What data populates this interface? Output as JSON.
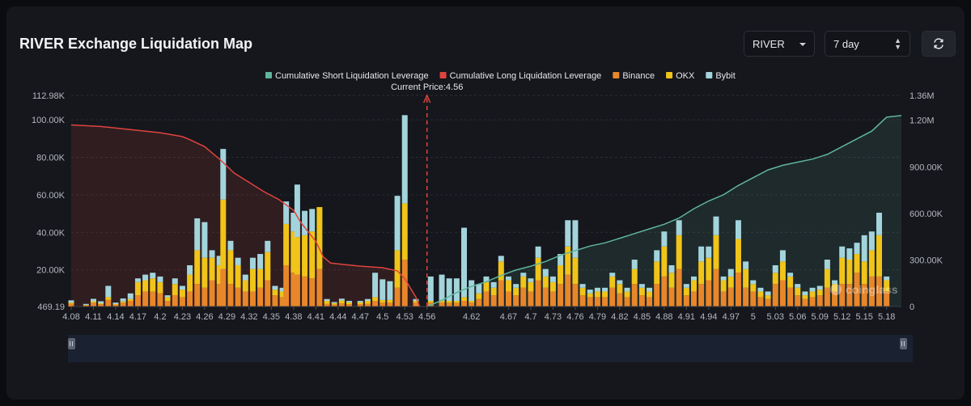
{
  "header": {
    "title": "RIVER Exchange Liquidation Map",
    "symbol_select": "RIVER",
    "range_select": "7 day"
  },
  "watermark": "coinglass",
  "colors": {
    "short_cum": "#5fb49c",
    "long_cum": "#e0433f",
    "binance": "#e8862a",
    "okx": "#f0c419",
    "bybit": "#a3d4dc",
    "current_price": "#e0433f"
  },
  "chart_data": {
    "type": "bar",
    "x_tick_labels": [
      "4.08",
      "4.11",
      "4.14",
      "4.17",
      "4.2",
      "4.23",
      "4.26",
      "4.29",
      "4.32",
      "4.35",
      "4.38",
      "4.41",
      "4.44",
      "4.47",
      "4.5",
      "4.53",
      "4.56",
      "4.62",
      "4.67",
      "4.7",
      "4.73",
      "4.76",
      "4.79",
      "4.82",
      "4.85",
      "4.88",
      "4.91",
      "4.94",
      "4.97",
      "5",
      "5.03",
      "5.06",
      "5.09",
      "5.12",
      "5.15",
      "5.18"
    ],
    "x_range": [
      4.08,
      5.2
    ],
    "y_left_ticks": [
      "469.19",
      "20.00K",
      "40.00K",
      "60.00K",
      "80.00K",
      "100.00K",
      "112.98K"
    ],
    "y_left_range": [
      469.19,
      112980
    ],
    "y_right_ticks": [
      "0",
      "300.00K",
      "600.00K",
      "900.00K",
      "1.20M",
      "1.36M"
    ],
    "y_right_range": [
      0,
      1360000
    ],
    "current_price": 4.56,
    "current_price_label": "Current Price:4.56",
    "legend": [
      {
        "name": "Cumulative Short Liquidation Leverage",
        "color": "#5fb49c"
      },
      {
        "name": "Cumulative Long Liquidation Leverage",
        "color": "#e0433f"
      },
      {
        "name": "Binance",
        "color": "#e8862a"
      },
      {
        "name": "OKX",
        "color": "#f0c419"
      },
      {
        "name": "Bybit",
        "color": "#a3d4dc"
      }
    ],
    "bars": [
      {
        "x": 4.08,
        "binance": 1500,
        "okx": 600,
        "bybit": 1200
      },
      {
        "x": 4.1,
        "binance": 600,
        "okx": 300,
        "bybit": 500
      },
      {
        "x": 4.11,
        "binance": 2000,
        "okx": 800,
        "bybit": 1300
      },
      {
        "x": 4.12,
        "binance": 1200,
        "okx": 500,
        "bybit": 1100
      },
      {
        "x": 4.13,
        "binance": 3500,
        "okx": 1500,
        "bybit": 6000
      },
      {
        "x": 4.14,
        "binance": 900,
        "okx": 400,
        "bybit": 800
      },
      {
        "x": 4.15,
        "binance": 2000,
        "okx": 700,
        "bybit": 1600
      },
      {
        "x": 4.16,
        "binance": 3000,
        "okx": 1000,
        "bybit": 3000
      },
      {
        "x": 4.17,
        "binance": 6000,
        "okx": 7000,
        "bybit": 2000
      },
      {
        "x": 4.18,
        "binance": 8000,
        "okx": 6000,
        "bybit": 3000
      },
      {
        "x": 4.19,
        "binance": 8000,
        "okx": 7000,
        "bybit": 3000
      },
      {
        "x": 4.2,
        "binance": 7000,
        "okx": 6000,
        "bybit": 3000
      },
      {
        "x": 4.21,
        "binance": 3000,
        "okx": 2000,
        "bybit": 1000
      },
      {
        "x": 4.22,
        "binance": 6000,
        "okx": 6000,
        "bybit": 3000
      },
      {
        "x": 4.23,
        "binance": 5000,
        "okx": 4000,
        "bybit": 2000
      },
      {
        "x": 4.24,
        "binance": 8000,
        "okx": 9000,
        "bybit": 5000
      },
      {
        "x": 4.25,
        "binance": 12000,
        "okx": 18000,
        "bybit": 17000
      },
      {
        "x": 4.26,
        "binance": 10000,
        "okx": 16000,
        "bybit": 19000
      },
      {
        "x": 4.27,
        "binance": 14000,
        "okx": 12000,
        "bybit": 4000
      },
      {
        "x": 4.28,
        "binance": 12000,
        "okx": 10000,
        "bybit": 5000
      },
      {
        "x": 4.285,
        "binance": 20000,
        "okx": 37000,
        "bybit": 27000
      },
      {
        "x": 4.295,
        "binance": 12000,
        "okx": 18000,
        "bybit": 5000
      },
      {
        "x": 4.305,
        "binance": 10000,
        "okx": 12000,
        "bybit": 4000
      },
      {
        "x": 4.315,
        "binance": 8000,
        "okx": 6000,
        "bybit": 3000
      },
      {
        "x": 4.325,
        "binance": 8000,
        "okx": 12000,
        "bybit": 6000
      },
      {
        "x": 4.335,
        "binance": 10000,
        "okx": 10000,
        "bybit": 8000
      },
      {
        "x": 4.345,
        "binance": 14000,
        "okx": 15000,
        "bybit": 6000
      },
      {
        "x": 4.355,
        "binance": 6000,
        "okx": 3000,
        "bybit": 2000
      },
      {
        "x": 4.365,
        "binance": 5000,
        "okx": 3000,
        "bybit": 2000
      },
      {
        "x": 4.37,
        "binance": 22000,
        "okx": 22000,
        "bybit": 12000
      },
      {
        "x": 4.38,
        "binance": 18000,
        "okx": 22000,
        "bybit": 10000
      },
      {
        "x": 4.385,
        "binance": 17000,
        "okx": 20000,
        "bybit": 28000
      },
      {
        "x": 4.395,
        "binance": 16000,
        "okx": 22000,
        "bybit": 13000
      },
      {
        "x": 4.405,
        "binance": 15000,
        "okx": 25000,
        "bybit": 12000
      },
      {
        "x": 4.415,
        "binance": 20000,
        "okx": 33000,
        "bybit": 0
      },
      {
        "x": 4.425,
        "binance": 1500,
        "okx": 1500,
        "bybit": 1000
      },
      {
        "x": 4.435,
        "binance": 1000,
        "okx": 800,
        "bybit": 600
      },
      {
        "x": 4.445,
        "binance": 1600,
        "okx": 1600,
        "bybit": 1000
      },
      {
        "x": 4.455,
        "binance": 1200,
        "okx": 1000,
        "bybit": 800
      },
      {
        "x": 4.47,
        "binance": 1200,
        "okx": 1000,
        "bybit": 800
      },
      {
        "x": 4.48,
        "binance": 1500,
        "okx": 1500,
        "bybit": 1000
      },
      {
        "x": 4.49,
        "binance": 3000,
        "okx": 2000,
        "bybit": 13000
      },
      {
        "x": 4.5,
        "binance": 2000,
        "okx": 1500,
        "bybit": 11000
      },
      {
        "x": 4.51,
        "binance": 2000,
        "okx": 1500,
        "bybit": 10000
      },
      {
        "x": 4.52,
        "binance": 10000,
        "okx": 20000,
        "bybit": 29000
      },
      {
        "x": 4.53,
        "binance": 25000,
        "okx": 30000,
        "bybit": 47000
      },
      {
        "x": 4.545,
        "binance": 2000,
        "okx": 1000,
        "bybit": 1000
      },
      {
        "x": 4.565,
        "binance": 2000,
        "okx": 1000,
        "bybit": 13000
      },
      {
        "x": 4.58,
        "binance": 2000,
        "okx": 1000,
        "bybit": 14000
      },
      {
        "x": 4.59,
        "binance": 2000,
        "okx": 1000,
        "bybit": 12000
      },
      {
        "x": 4.6,
        "binance": 2000,
        "okx": 1000,
        "bybit": 12000
      },
      {
        "x": 4.61,
        "binance": 3000,
        "okx": 2000,
        "bybit": 37000
      },
      {
        "x": 4.62,
        "binance": 2000,
        "okx": 1000,
        "bybit": 11000
      },
      {
        "x": 4.63,
        "binance": 4000,
        "okx": 3000,
        "bybit": 5000
      },
      {
        "x": 4.64,
        "binance": 8000,
        "okx": 5000,
        "bybit": 3000
      },
      {
        "x": 4.65,
        "binance": 6000,
        "okx": 4000,
        "bybit": 3000
      },
      {
        "x": 4.66,
        "binance": 14000,
        "okx": 10000,
        "bybit": 3000
      },
      {
        "x": 4.67,
        "binance": 8000,
        "okx": 6000,
        "bybit": 2000
      },
      {
        "x": 4.68,
        "binance": 6000,
        "okx": 4000,
        "bybit": 2000
      },
      {
        "x": 4.69,
        "binance": 10000,
        "okx": 6000,
        "bybit": 2000
      },
      {
        "x": 4.7,
        "binance": 8000,
        "okx": 5000,
        "bybit": 2000
      },
      {
        "x": 4.71,
        "binance": 14000,
        "okx": 12000,
        "bybit": 6000
      },
      {
        "x": 4.72,
        "binance": 10000,
        "okx": 6000,
        "bybit": 4000
      },
      {
        "x": 4.73,
        "binance": 8000,
        "okx": 5000,
        "bybit": 3000
      },
      {
        "x": 4.74,
        "binance": 12000,
        "okx": 10000,
        "bybit": 6000
      },
      {
        "x": 4.75,
        "binance": 17000,
        "okx": 15000,
        "bybit": 14000
      },
      {
        "x": 4.76,
        "binance": 12000,
        "okx": 14000,
        "bybit": 20000
      },
      {
        "x": 4.77,
        "binance": 6000,
        "okx": 4000,
        "bybit": 2000
      },
      {
        "x": 4.78,
        "binance": 5000,
        "okx": 2000,
        "bybit": 2000
      },
      {
        "x": 4.79,
        "binance": 5000,
        "okx": 3000,
        "bybit": 2000
      },
      {
        "x": 4.8,
        "binance": 5000,
        "okx": 3000,
        "bybit": 2000
      },
      {
        "x": 4.81,
        "binance": 10000,
        "okx": 6000,
        "bybit": 2000
      },
      {
        "x": 4.82,
        "binance": 7000,
        "okx": 5000,
        "bybit": 2000
      },
      {
        "x": 4.83,
        "binance": 5000,
        "okx": 3000,
        "bybit": 2000
      },
      {
        "x": 4.84,
        "binance": 12000,
        "okx": 8000,
        "bybit": 5000
      },
      {
        "x": 4.85,
        "binance": 6000,
        "okx": 4000,
        "bybit": 2000
      },
      {
        "x": 4.86,
        "binance": 5000,
        "okx": 3000,
        "bybit": 2000
      },
      {
        "x": 4.87,
        "binance": 12000,
        "okx": 12000,
        "bybit": 6000
      },
      {
        "x": 4.88,
        "binance": 16000,
        "okx": 16000,
        "bybit": 8000
      },
      {
        "x": 4.89,
        "binance": 10000,
        "okx": 8000,
        "bybit": 4000
      },
      {
        "x": 4.9,
        "binance": 20000,
        "okx": 18000,
        "bybit": 8000
      },
      {
        "x": 4.91,
        "binance": 6000,
        "okx": 4000,
        "bybit": 2000
      },
      {
        "x": 4.92,
        "binance": 8000,
        "okx": 6000,
        "bybit": 2000
      },
      {
        "x": 4.93,
        "binance": 12000,
        "okx": 12000,
        "bybit": 8000
      },
      {
        "x": 4.94,
        "binance": 14000,
        "okx": 12000,
        "bybit": 6000
      },
      {
        "x": 4.95,
        "binance": 20000,
        "okx": 18000,
        "bybit": 10000
      },
      {
        "x": 4.96,
        "binance": 8000,
        "okx": 6000,
        "bybit": 2000
      },
      {
        "x": 4.97,
        "binance": 10000,
        "okx": 6000,
        "bybit": 4000
      },
      {
        "x": 4.98,
        "binance": 18000,
        "okx": 18000,
        "bybit": 10000
      },
      {
        "x": 4.99,
        "binance": 10000,
        "okx": 10000,
        "bybit": 4000
      },
      {
        "x": 5.0,
        "binance": 8000,
        "okx": 4000,
        "bybit": 2000
      },
      {
        "x": 5.01,
        "binance": 5000,
        "okx": 3000,
        "bybit": 2000
      },
      {
        "x": 5.02,
        "binance": 4000,
        "okx": 2000,
        "bybit": 2000
      },
      {
        "x": 5.03,
        "binance": 12000,
        "okx": 6000,
        "bybit": 4000
      },
      {
        "x": 5.04,
        "binance": 14000,
        "okx": 10000,
        "bybit": 6000
      },
      {
        "x": 5.05,
        "binance": 10000,
        "okx": 6000,
        "bybit": 2000
      },
      {
        "x": 5.06,
        "binance": 6000,
        "okx": 4000,
        "bybit": 2000
      },
      {
        "x": 5.07,
        "binance": 4000,
        "okx": 2000,
        "bybit": 2000
      },
      {
        "x": 5.08,
        "binance": 5000,
        "okx": 3000,
        "bybit": 2000
      },
      {
        "x": 5.09,
        "binance": 6000,
        "okx": 3000,
        "bybit": 2000
      },
      {
        "x": 5.1,
        "binance": 10000,
        "okx": 10000,
        "bybit": 5000
      },
      {
        "x": 5.11,
        "binance": 8000,
        "okx": 4000,
        "bybit": 2000
      },
      {
        "x": 5.12,
        "binance": 12000,
        "okx": 14000,
        "bybit": 6000
      },
      {
        "x": 5.13,
        "binance": 12000,
        "okx": 13000,
        "bybit": 6000
      },
      {
        "x": 5.14,
        "binance": 18000,
        "okx": 10000,
        "bybit": 6000
      },
      {
        "x": 5.15,
        "binance": 12000,
        "okx": 12000,
        "bybit": 14000
      },
      {
        "x": 5.16,
        "binance": 16000,
        "okx": 14000,
        "bybit": 10000
      },
      {
        "x": 5.17,
        "binance": 16000,
        "okx": 22000,
        "bybit": 12000
      },
      {
        "x": 5.18,
        "binance": 8000,
        "okx": 6000,
        "bybit": 2000
      }
    ],
    "long_cum": [
      [
        4.08,
        1170000
      ],
      [
        4.12,
        1160000
      ],
      [
        4.16,
        1140000
      ],
      [
        4.2,
        1120000
      ],
      [
        4.23,
        1095000
      ],
      [
        4.24,
        1075000
      ],
      [
        4.26,
        1030000
      ],
      [
        4.28,
        950000
      ],
      [
        4.3,
        860000
      ],
      [
        4.32,
        800000
      ],
      [
        4.34,
        740000
      ],
      [
        4.36,
        690000
      ],
      [
        4.38,
        620000
      ],
      [
        4.39,
        540000
      ],
      [
        4.41,
        420000
      ],
      [
        4.42,
        320000
      ],
      [
        4.43,
        280000
      ],
      [
        4.45,
        270000
      ],
      [
        4.47,
        260000
      ],
      [
        4.5,
        250000
      ],
      [
        4.52,
        230000
      ],
      [
        4.53,
        180000
      ],
      [
        4.545,
        60000
      ],
      [
        4.55,
        0
      ]
    ],
    "short_cum": [
      [
        4.56,
        0
      ],
      [
        4.58,
        40000
      ],
      [
        4.6,
        90000
      ],
      [
        4.62,
        130000
      ],
      [
        4.64,
        160000
      ],
      [
        4.66,
        200000
      ],
      [
        4.68,
        235000
      ],
      [
        4.7,
        260000
      ],
      [
        4.72,
        290000
      ],
      [
        4.74,
        330000
      ],
      [
        4.76,
        360000
      ],
      [
        4.78,
        390000
      ],
      [
        4.8,
        410000
      ],
      [
        4.82,
        440000
      ],
      [
        4.84,
        470000
      ],
      [
        4.86,
        500000
      ],
      [
        4.88,
        530000
      ],
      [
        4.9,
        570000
      ],
      [
        4.92,
        630000
      ],
      [
        4.94,
        680000
      ],
      [
        4.96,
        720000
      ],
      [
        4.98,
        780000
      ],
      [
        5.0,
        830000
      ],
      [
        5.02,
        880000
      ],
      [
        5.04,
        910000
      ],
      [
        5.06,
        930000
      ],
      [
        5.08,
        950000
      ],
      [
        5.1,
        980000
      ],
      [
        5.12,
        1030000
      ],
      [
        5.14,
        1080000
      ],
      [
        5.16,
        1130000
      ],
      [
        5.18,
        1220000
      ],
      [
        5.2,
        1230000
      ]
    ]
  }
}
